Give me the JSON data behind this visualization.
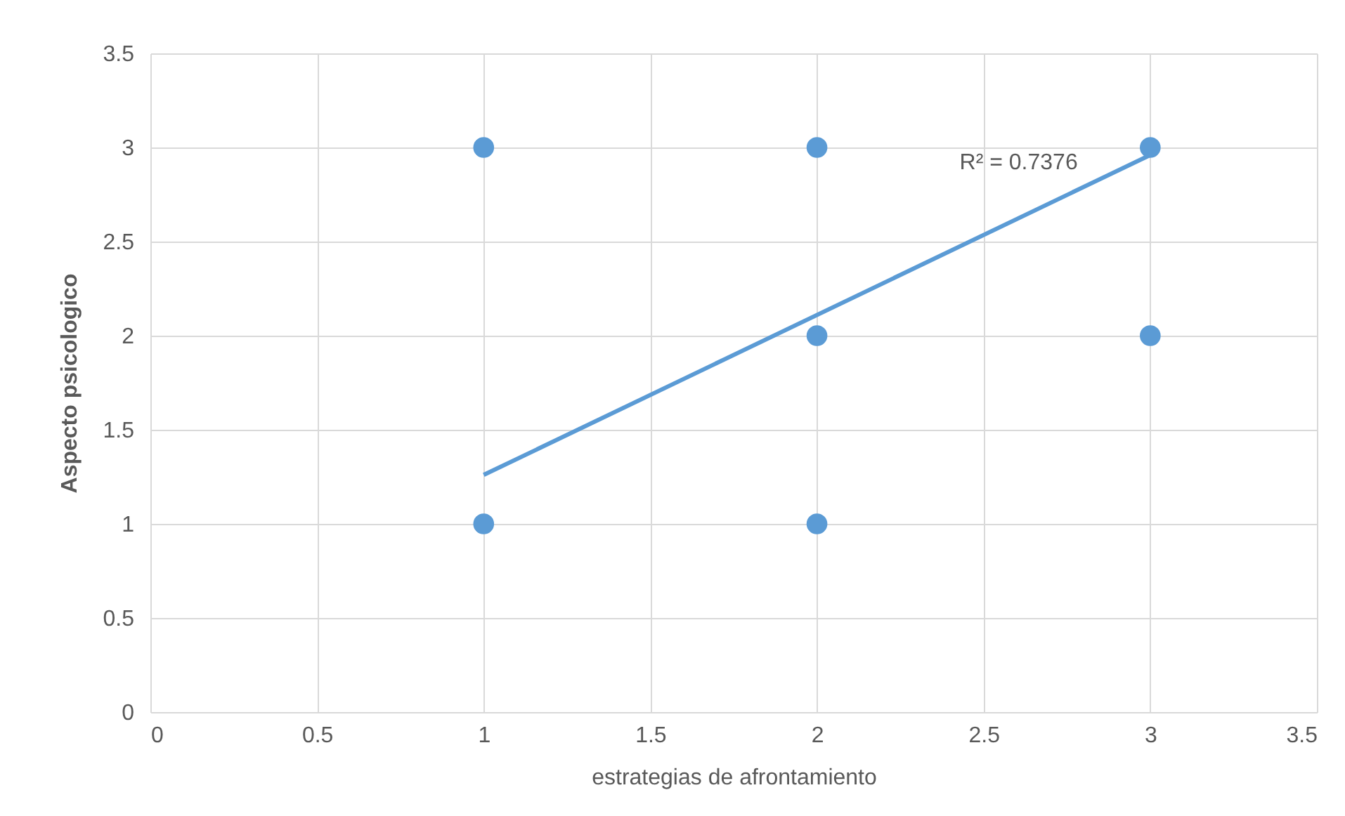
{
  "chart_data": {
    "type": "scatter",
    "xlabel": "estrategias de afrontamiento",
    "ylabel": "Aspecto psicologico",
    "xlim": [
      0,
      3.5
    ],
    "xticks": [
      0,
      0.5,
      1,
      1.5,
      2,
      2.5,
      3,
      3.5
    ],
    "ylim": [
      0,
      3.5
    ],
    "yticks": [
      0,
      0.5,
      1,
      1.5,
      2,
      2.5,
      3,
      3.5
    ],
    "grid": true,
    "marker": "circle",
    "series": [
      {
        "color": "#5b9bd5",
        "x": [
          1,
          2,
          3,
          2,
          3,
          1,
          2
        ],
        "values": [
          3,
          3,
          3,
          2,
          2,
          1,
          1
        ]
      },
      {
        "type": "line",
        "marker": "none",
        "color": "#5b9bd5",
        "x": [
          1,
          3
        ],
        "values": [
          1.26,
          2.96
        ]
      }
    ],
    "annotations": [
      "R² = 0.7376"
    ]
  }
}
